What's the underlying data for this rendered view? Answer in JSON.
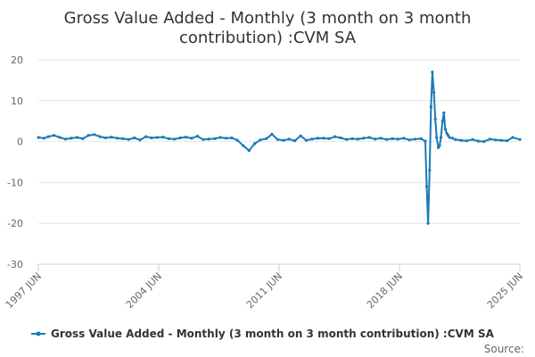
{
  "chart_data": {
    "type": "line",
    "title_lines": [
      "Gross Value Added - Monthly (3 month on 3 month",
      "contribution) :CVM SA"
    ],
    "xlabel": "",
    "ylabel": "",
    "ylim": [
      -30,
      20
    ],
    "yticks": [
      20,
      10,
      0,
      -10,
      -20,
      -30
    ],
    "xlim": [
      1997.4167,
      2025.4167
    ],
    "xticks": [
      {
        "value": 1997.4167,
        "label": "1997 JUN"
      },
      {
        "value": 2004.4167,
        "label": "2004 JUN"
      },
      {
        "value": 2011.4167,
        "label": "2011 JUN"
      },
      {
        "value": 2018.4167,
        "label": "2018 JUN"
      },
      {
        "value": 2025.4167,
        "label": "2025 JUN"
      }
    ],
    "legend": "bottom",
    "source_label": "Source:",
    "series": [
      {
        "name": "Gross Value Added - Monthly (3 month on 3 month contribution) :CVM SA",
        "color": "#1a7ab5",
        "x": [
          1997.42,
          1997.75,
          1998.0,
          1998.33,
          1998.67,
          1999.0,
          1999.33,
          1999.67,
          2000.0,
          2000.33,
          2000.67,
          2001.0,
          2001.33,
          2001.67,
          2002.0,
          2002.33,
          2002.67,
          2003.0,
          2003.33,
          2003.67,
          2004.0,
          2004.33,
          2004.67,
          2005.0,
          2005.33,
          2005.67,
          2006.0,
          2006.33,
          2006.67,
          2007.0,
          2007.33,
          2007.67,
          2008.0,
          2008.33,
          2008.67,
          2009.0,
          2009.33,
          2009.67,
          2010.0,
          2010.33,
          2010.67,
          2011.0,
          2011.33,
          2011.67,
          2012.0,
          2012.33,
          2012.67,
          2013.0,
          2013.33,
          2013.67,
          2014.0,
          2014.33,
          2014.67,
          2015.0,
          2015.33,
          2015.67,
          2016.0,
          2016.33,
          2016.67,
          2017.0,
          2017.33,
          2017.67,
          2018.0,
          2018.33,
          2018.67,
          2019.0,
          2019.33,
          2019.67,
          2019.92,
          2020.0,
          2020.08,
          2020.17,
          2020.25,
          2020.33,
          2020.42,
          2020.5,
          2020.58,
          2020.67,
          2020.75,
          2020.83,
          2020.92,
          2021.0,
          2021.08,
          2021.17,
          2021.25,
          2021.33,
          2021.5,
          2021.67,
          2022.0,
          2022.33,
          2022.67,
          2023.0,
          2023.33,
          2023.67,
          2024.0,
          2024.33,
          2024.67,
          2025.0,
          2025.42
        ],
        "y": [
          1.0,
          0.8,
          1.2,
          1.5,
          1.0,
          0.6,
          0.8,
          1.0,
          0.7,
          1.5,
          1.7,
          1.2,
          0.9,
          1.1,
          0.8,
          0.7,
          0.5,
          0.9,
          0.4,
          1.2,
          0.9,
          1.0,
          1.1,
          0.7,
          0.6,
          0.9,
          1.1,
          0.8,
          1.3,
          0.5,
          0.6,
          0.7,
          1.0,
          0.8,
          0.9,
          0.3,
          -1.0,
          -2.2,
          -0.5,
          0.4,
          0.7,
          1.8,
          0.5,
          0.3,
          0.6,
          0.2,
          1.4,
          0.3,
          0.6,
          0.8,
          0.8,
          0.7,
          1.2,
          0.9,
          0.5,
          0.7,
          0.6,
          0.8,
          1.0,
          0.6,
          0.8,
          0.5,
          0.7,
          0.6,
          0.8,
          0.4,
          0.6,
          0.7,
          0.1,
          -11.0,
          -20.0,
          -7.0,
          8.5,
          17.0,
          12.0,
          5.5,
          1.0,
          -1.5,
          -1.0,
          1.0,
          5.0,
          7.0,
          3.0,
          2.0,
          1.5,
          1.0,
          0.8,
          0.5,
          0.3,
          0.2,
          0.5,
          0.1,
          0.0,
          0.6,
          0.4,
          0.3,
          0.2,
          1.0,
          0.5
        ]
      }
    ]
  }
}
